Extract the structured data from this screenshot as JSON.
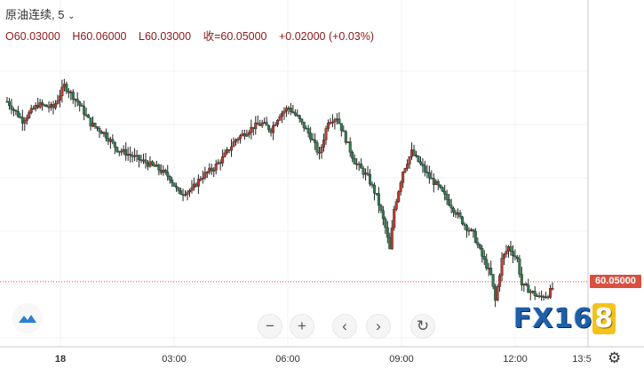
{
  "legend": {
    "symbol": "原油连续, 5",
    "chevron_icon": "chevron-down-icon"
  },
  "ohlc": {
    "open": "O60.03000",
    "high": "H60.06000",
    "low": "L60.03000",
    "close": "收=60.05000",
    "change": "+0.02000 (+0.03%)"
  },
  "last_price": "60.05000",
  "brand": {
    "main": "FX16",
    "accent": "8"
  },
  "toolbar": {
    "zoom_out_label": "−",
    "zoom_in_label": "+",
    "scroll_left_label": "‹",
    "scroll_right_label": "›",
    "reset_label": "↻"
  },
  "colors": {
    "up": "#c0392b",
    "down": "#2e7d4f",
    "price_line": "#d9503f",
    "price_tag": "#d9503f",
    "brand_blue": "#1e5fa8",
    "brand_yellow": "#f3c21b"
  },
  "chart_data": {
    "type": "candlestick",
    "title": "原油连续, 5",
    "interval_minutes": 5,
    "x_ticks": [
      "18",
      "03:00",
      "06:00",
      "09:00",
      "12:00",
      "13:5"
    ],
    "last_price": 60.05,
    "y_approx_range": [
      59.85,
      60.8
    ],
    "grid": true,
    "price_path": [
      [
        0,
        60.62
      ],
      [
        7,
        60.56
      ],
      [
        14,
        60.61
      ],
      [
        21,
        60.6
      ],
      [
        26,
        60.67
      ],
      [
        32,
        60.62
      ],
      [
        38,
        60.55
      ],
      [
        44,
        60.52
      ],
      [
        50,
        60.47
      ],
      [
        56,
        60.45
      ],
      [
        62,
        60.43
      ],
      [
        68,
        60.41
      ],
      [
        74,
        60.38
      ],
      [
        78,
        60.33
      ],
      [
        84,
        60.34
      ],
      [
        88,
        60.38
      ],
      [
        94,
        60.41
      ],
      [
        98,
        60.44
      ],
      [
        104,
        60.5
      ],
      [
        108,
        60.52
      ],
      [
        112,
        60.54
      ],
      [
        116,
        60.55
      ],
      [
        120,
        60.53
      ],
      [
        124,
        60.58
      ],
      [
        128,
        60.6
      ],
      [
        132,
        60.57
      ],
      [
        138,
        60.51
      ],
      [
        142,
        60.45
      ],
      [
        146,
        60.56
      ],
      [
        150,
        60.57
      ],
      [
        154,
        60.5
      ],
      [
        158,
        60.43
      ],
      [
        164,
        60.38
      ],
      [
        168,
        60.32
      ],
      [
        172,
        60.22
      ],
      [
        174,
        60.15
      ],
      [
        176,
        60.28
      ],
      [
        180,
        60.4
      ],
      [
        184,
        60.46
      ],
      [
        188,
        60.42
      ],
      [
        192,
        60.38
      ],
      [
        196,
        60.35
      ],
      [
        200,
        60.31
      ],
      [
        204,
        60.27
      ],
      [
        208,
        60.23
      ],
      [
        212,
        60.2
      ],
      [
        216,
        60.13
      ],
      [
        220,
        60.07
      ],
      [
        222,
        59.99
      ],
      [
        225,
        60.12
      ],
      [
        228,
        60.16
      ],
      [
        232,
        60.12
      ],
      [
        234,
        60.04
      ],
      [
        238,
        60.02
      ],
      [
        242,
        60.0
      ],
      [
        246,
        60.01
      ],
      [
        248,
        60.03
      ]
    ]
  }
}
